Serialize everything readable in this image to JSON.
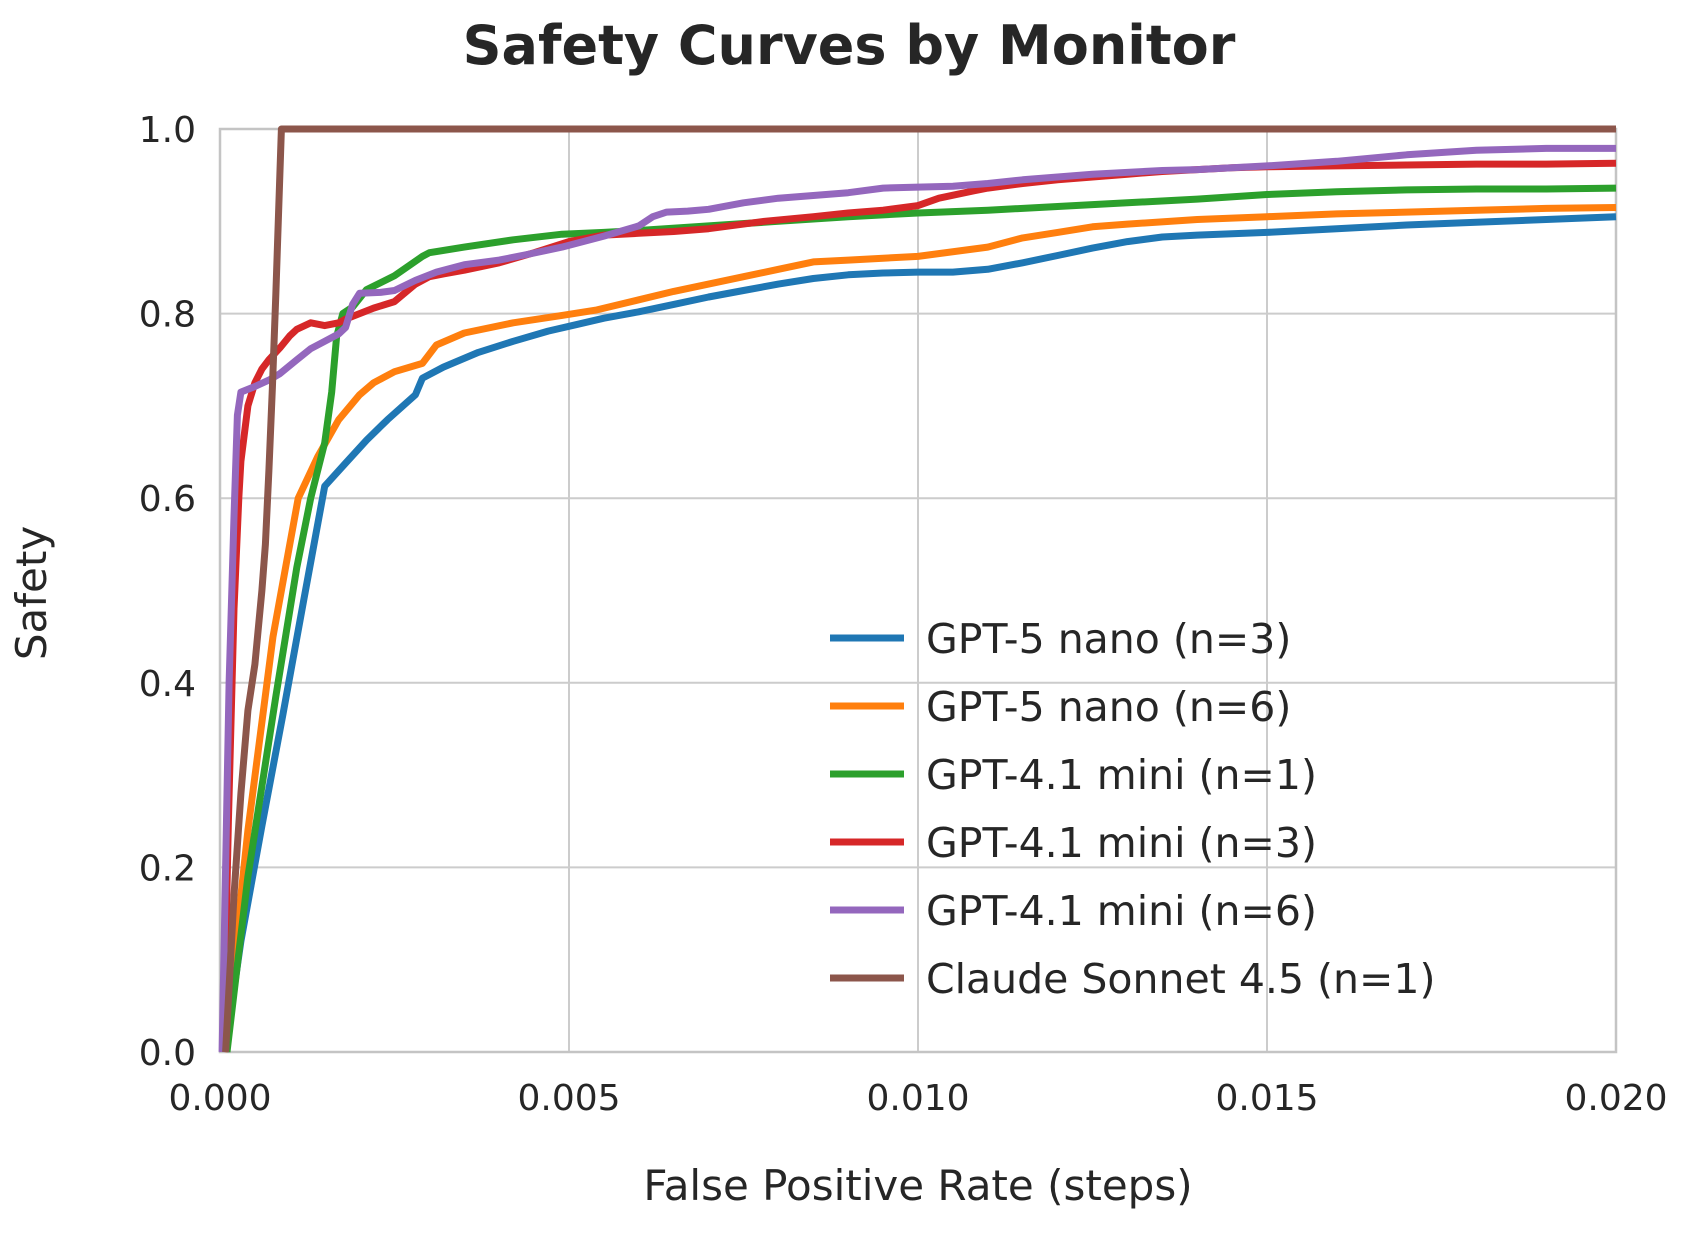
{
  "chart_data": {
    "type": "line",
    "title": "Safety Curves by Monitor",
    "title_color": "#16312a",
    "xlabel": "False Positive Rate (steps)",
    "ylabel": "Safety",
    "xlim": [
      0,
      0.02
    ],
    "ylim": [
      0,
      1.0
    ],
    "grid": true,
    "legend_position": "lower right",
    "legend_frame": false,
    "xticks": {
      "values": [
        0,
        0.005,
        0.01,
        0.015,
        0.02
      ],
      "labels": [
        "0.000",
        "0.005",
        "0.010",
        "0.015",
        "0.020"
      ]
    },
    "yticks": {
      "values": [
        0,
        0.2,
        0.4,
        0.6,
        0.8,
        1.0
      ],
      "labels": [
        "0.0",
        "0.2",
        "0.4",
        "0.6",
        "0.8",
        "1.0"
      ]
    },
    "series": [
      {
        "name": "GPT-5 nano (n=3)",
        "color": "#1f77b4",
        "points": [
          [
            7e-05,
            0
          ],
          [
            0.0003,
            0.12
          ],
          [
            0.0006,
            0.245
          ],
          [
            0.0009,
            0.365
          ],
          [
            0.0012,
            0.49
          ],
          [
            0.0015,
            0.613
          ],
          [
            0.0018,
            0.638
          ],
          [
            0.0021,
            0.663
          ],
          [
            0.0024,
            0.685
          ],
          [
            0.0028,
            0.712
          ],
          [
            0.0029,
            0.73
          ],
          [
            0.0032,
            0.742
          ],
          [
            0.0037,
            0.758
          ],
          [
            0.0042,
            0.77
          ],
          [
            0.0047,
            0.781
          ],
          [
            0.0051,
            0.788
          ],
          [
            0.0055,
            0.795
          ],
          [
            0.006,
            0.802
          ],
          [
            0.0065,
            0.81
          ],
          [
            0.007,
            0.818
          ],
          [
            0.0075,
            0.825
          ],
          [
            0.008,
            0.832
          ],
          [
            0.0085,
            0.838
          ],
          [
            0.009,
            0.842
          ],
          [
            0.0095,
            0.844
          ],
          [
            0.01,
            0.845
          ],
          [
            0.0105,
            0.845
          ],
          [
            0.011,
            0.848
          ],
          [
            0.0115,
            0.855
          ],
          [
            0.012,
            0.863
          ],
          [
            0.0125,
            0.871
          ],
          [
            0.013,
            0.878
          ],
          [
            0.0135,
            0.883
          ],
          [
            0.014,
            0.885
          ],
          [
            0.015,
            0.888
          ],
          [
            0.016,
            0.892
          ],
          [
            0.017,
            0.896
          ],
          [
            0.018,
            0.899
          ],
          [
            0.019,
            0.902
          ],
          [
            0.02,
            0.905
          ]
        ]
      },
      {
        "name": "GPT-5 nano (n=6)",
        "color": "#ff7f0e",
        "points": [
          [
            6e-05,
            0
          ],
          [
            0.0004,
            0.24
          ],
          [
            0.00076,
            0.45
          ],
          [
            0.001,
            0.55
          ],
          [
            0.00112,
            0.6
          ],
          [
            0.0014,
            0.645
          ],
          [
            0.0017,
            0.685
          ],
          [
            0.002,
            0.712
          ],
          [
            0.0022,
            0.725
          ],
          [
            0.0025,
            0.737
          ],
          [
            0.0029,
            0.746
          ],
          [
            0.0031,
            0.766
          ],
          [
            0.0035,
            0.779
          ],
          [
            0.0042,
            0.79
          ],
          [
            0.0049,
            0.798
          ],
          [
            0.0054,
            0.804
          ],
          [
            0.006,
            0.815
          ],
          [
            0.0065,
            0.824
          ],
          [
            0.007,
            0.832
          ],
          [
            0.0075,
            0.84
          ],
          [
            0.008,
            0.848
          ],
          [
            0.0085,
            0.856
          ],
          [
            0.009,
            0.858
          ],
          [
            0.0095,
            0.86
          ],
          [
            0.01,
            0.862
          ],
          [
            0.011,
            0.872
          ],
          [
            0.0115,
            0.882
          ],
          [
            0.012,
            0.888
          ],
          [
            0.0125,
            0.894
          ],
          [
            0.013,
            0.897
          ],
          [
            0.014,
            0.902
          ],
          [
            0.015,
            0.905
          ],
          [
            0.016,
            0.908
          ],
          [
            0.017,
            0.91
          ],
          [
            0.018,
            0.912
          ],
          [
            0.019,
            0.914
          ],
          [
            0.02,
            0.915
          ]
        ]
      },
      {
        "name": "GPT-4.1 mini (n=1)",
        "color": "#2ca02c",
        "points": [
          [
            0.0001,
            0
          ],
          [
            0.0004,
            0.19
          ],
          [
            0.0008,
            0.385
          ],
          [
            0.0011,
            0.525
          ],
          [
            0.0013,
            0.6
          ],
          [
            0.0015,
            0.66
          ],
          [
            0.0016,
            0.715
          ],
          [
            0.00167,
            0.775
          ],
          [
            0.00176,
            0.8
          ],
          [
            0.0019,
            0.807
          ],
          [
            0.0021,
            0.826
          ],
          [
            0.0025,
            0.841
          ],
          [
            0.0029,
            0.862
          ],
          [
            0.003,
            0.866
          ],
          [
            0.0035,
            0.872
          ],
          [
            0.0042,
            0.88
          ],
          [
            0.0049,
            0.886
          ],
          [
            0.0055,
            0.888
          ],
          [
            0.006,
            0.89
          ],
          [
            0.007,
            0.895
          ],
          [
            0.008,
            0.9
          ],
          [
            0.009,
            0.905
          ],
          [
            0.01,
            0.909
          ],
          [
            0.011,
            0.912
          ],
          [
            0.012,
            0.916
          ],
          [
            0.013,
            0.92
          ],
          [
            0.014,
            0.924
          ],
          [
            0.015,
            0.929
          ],
          [
            0.016,
            0.932
          ],
          [
            0.017,
            0.934
          ],
          [
            0.018,
            0.935
          ],
          [
            0.019,
            0.935
          ],
          [
            0.02,
            0.936
          ]
        ]
      },
      {
        "name": "GPT-4.1 mini (n=3)",
        "color": "#d62728",
        "points": [
          [
            5e-05,
            0
          ],
          [
            0.00012,
            0.25
          ],
          [
            0.0002,
            0.48
          ],
          [
            0.00027,
            0.6
          ],
          [
            0.0003,
            0.64
          ],
          [
            0.0004,
            0.7
          ],
          [
            0.0005,
            0.725
          ],
          [
            0.0006,
            0.74
          ],
          [
            0.0007,
            0.75
          ],
          [
            0.00086,
            0.763
          ],
          [
            0.001,
            0.776
          ],
          [
            0.0011,
            0.783
          ],
          [
            0.0013,
            0.79
          ],
          [
            0.0015,
            0.787
          ],
          [
            0.0017,
            0.79
          ],
          [
            0.0018,
            0.794
          ],
          [
            0.002,
            0.8
          ],
          [
            0.0022,
            0.806
          ],
          [
            0.0025,
            0.813
          ],
          [
            0.0028,
            0.832
          ],
          [
            0.003,
            0.84
          ],
          [
            0.0032,
            0.843
          ],
          [
            0.0035,
            0.847
          ],
          [
            0.004,
            0.855
          ],
          [
            0.0045,
            0.866
          ],
          [
            0.005,
            0.878
          ],
          [
            0.0055,
            0.885
          ],
          [
            0.006,
            0.887
          ],
          [
            0.0065,
            0.889
          ],
          [
            0.007,
            0.892
          ],
          [
            0.0078,
            0.9
          ],
          [
            0.0085,
            0.905
          ],
          [
            0.009,
            0.909
          ],
          [
            0.0095,
            0.912
          ],
          [
            0.01,
            0.917
          ],
          [
            0.0103,
            0.925
          ],
          [
            0.0108,
            0.933
          ],
          [
            0.011,
            0.936
          ],
          [
            0.0115,
            0.941
          ],
          [
            0.012,
            0.945
          ],
          [
            0.0125,
            0.948
          ],
          [
            0.013,
            0.951
          ],
          [
            0.0135,
            0.954
          ],
          [
            0.014,
            0.956
          ],
          [
            0.0145,
            0.958
          ],
          [
            0.015,
            0.959
          ],
          [
            0.016,
            0.96
          ],
          [
            0.017,
            0.961
          ],
          [
            0.018,
            0.962
          ],
          [
            0.019,
            0.962
          ],
          [
            0.02,
            0.963
          ]
        ]
      },
      {
        "name": "GPT-4.1 mini (n=6)",
        "color": "#9467bd",
        "points": [
          [
            3e-05,
            0
          ],
          [
            8e-05,
            0.2
          ],
          [
            0.00013,
            0.4
          ],
          [
            0.0002,
            0.58
          ],
          [
            0.00025,
            0.69
          ],
          [
            0.0003,
            0.715
          ],
          [
            0.0005,
            0.721
          ],
          [
            0.0007,
            0.728
          ],
          [
            0.00086,
            0.735
          ],
          [
            0.0011,
            0.75
          ],
          [
            0.0013,
            0.762
          ],
          [
            0.0015,
            0.77
          ],
          [
            0.0017,
            0.778
          ],
          [
            0.0018,
            0.785
          ],
          [
            0.0019,
            0.81
          ],
          [
            0.002,
            0.822
          ],
          [
            0.0023,
            0.823
          ],
          [
            0.0025,
            0.825
          ],
          [
            0.0028,
            0.836
          ],
          [
            0.0031,
            0.845
          ],
          [
            0.0035,
            0.853
          ],
          [
            0.004,
            0.858
          ],
          [
            0.0044,
            0.864
          ],
          [
            0.0049,
            0.872
          ],
          [
            0.0055,
            0.884
          ],
          [
            0.006,
            0.895
          ],
          [
            0.0062,
            0.905
          ],
          [
            0.0064,
            0.91
          ],
          [
            0.0067,
            0.911
          ],
          [
            0.007,
            0.913
          ],
          [
            0.0075,
            0.92
          ],
          [
            0.008,
            0.925
          ],
          [
            0.0085,
            0.928
          ],
          [
            0.009,
            0.931
          ],
          [
            0.0095,
            0.936
          ],
          [
            0.01,
            0.937
          ],
          [
            0.0105,
            0.938
          ],
          [
            0.011,
            0.941
          ],
          [
            0.0115,
            0.945
          ],
          [
            0.012,
            0.948
          ],
          [
            0.0125,
            0.951
          ],
          [
            0.013,
            0.953
          ],
          [
            0.0135,
            0.955
          ],
          [
            0.014,
            0.956
          ],
          [
            0.0145,
            0.958
          ],
          [
            0.015,
            0.96
          ],
          [
            0.016,
            0.965
          ],
          [
            0.017,
            0.972
          ],
          [
            0.018,
            0.977
          ],
          [
            0.019,
            0.979
          ],
          [
            0.02,
            0.979
          ]
        ]
      },
      {
        "name": "Claude Sonnet 4.5 (n=1)",
        "color": "#8c564b",
        "points": [
          [
            8e-05,
            0
          ],
          [
            0.0002,
            0.17
          ],
          [
            0.0003,
            0.28
          ],
          [
            0.0004,
            0.37
          ],
          [
            0.0005,
            0.42
          ],
          [
            0.0006,
            0.5
          ],
          [
            0.00065,
            0.55
          ],
          [
            0.0007,
            0.63
          ],
          [
            0.00075,
            0.72
          ],
          [
            0.0008,
            0.82
          ],
          [
            0.00088,
            1.0
          ],
          [
            0.02,
            1.0
          ]
        ]
      }
    ]
  }
}
